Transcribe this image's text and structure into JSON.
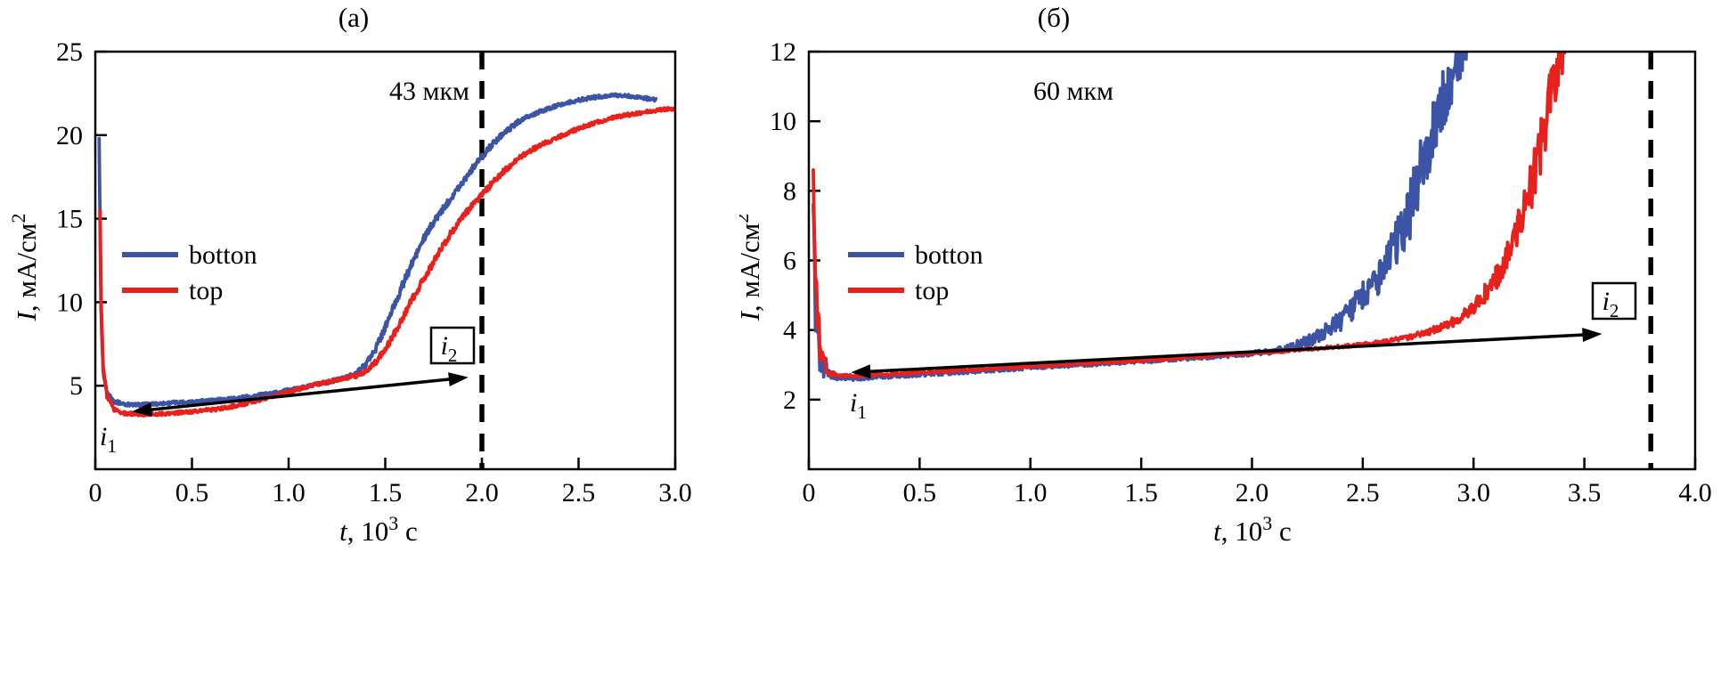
{
  "figure": {
    "background": "#ffffff"
  },
  "chart_data": [
    {
      "panel": "a",
      "type": "line",
      "title": "(а)",
      "xlabel": "t, 10^3 с",
      "xlabel_segments": [
        {
          "t": "t",
          "italic": true
        },
        {
          "t": ", 10"
        },
        {
          "t": "3",
          "sup": true
        },
        {
          "t": " с"
        }
      ],
      "ylabel": "I, мА/см^2",
      "ylabel_segments": [
        {
          "t": "I",
          "italic": true
        },
        {
          "t": ", мА/см"
        },
        {
          "t": "2",
          "sup": true
        }
      ],
      "xlim": [
        0,
        3.0
      ],
      "ylim": [
        0,
        25
      ],
      "xticks": {
        "values": [
          0,
          0.5,
          1.0,
          1.5,
          2.0,
          2.5,
          3.0
        ],
        "labels": [
          "0",
          "0.5",
          "1.0",
          "1.5",
          "2.0",
          "2.5",
          "3.0"
        ]
      },
      "yticks": {
        "values": [
          5,
          10,
          15,
          20,
          25
        ],
        "labels": [
          "5",
          "10",
          "15",
          "20",
          "25"
        ]
      },
      "grid": false,
      "frame": "box",
      "legend_position": "left-middle",
      "annotation": "43 мкм",
      "dashed_line_x": 2.0,
      "arrow": {
        "x1": 0.19,
        "y1": 3.45,
        "x2": 1.93,
        "y2": 5.5,
        "start_label": {
          "base": "i",
          "sub": "1"
        },
        "end_label": {
          "base": "i",
          "sub": "2"
        },
        "end_label_boxed": true
      },
      "series": [
        {
          "name": "botton",
          "color": "#3b54a5",
          "noise_base": 0.09,
          "noise_slope": 0.006,
          "points": [
            [
              0.02,
              19.8
            ],
            [
              0.025,
              14.0
            ],
            [
              0.03,
              9.0
            ],
            [
              0.04,
              5.8
            ],
            [
              0.06,
              4.6
            ],
            [
              0.1,
              4.05
            ],
            [
              0.15,
              3.9
            ],
            [
              0.2,
              3.85
            ],
            [
              0.3,
              3.9
            ],
            [
              0.4,
              3.98
            ],
            [
              0.5,
              4.05
            ],
            [
              0.6,
              4.12
            ],
            [
              0.7,
              4.22
            ],
            [
              0.8,
              4.35
            ],
            [
              0.9,
              4.52
            ],
            [
              1.0,
              4.72
            ],
            [
              1.1,
              4.95
            ],
            [
              1.2,
              5.2
            ],
            [
              1.3,
              5.5
            ],
            [
              1.35,
              5.75
            ],
            [
              1.4,
              6.3
            ],
            [
              1.45,
              7.2
            ],
            [
              1.5,
              8.5
            ],
            [
              1.55,
              9.9
            ],
            [
              1.6,
              11.3
            ],
            [
              1.65,
              12.6
            ],
            [
              1.7,
              13.8
            ],
            [
              1.75,
              14.8
            ],
            [
              1.8,
              15.6
            ],
            [
              1.85,
              16.4
            ],
            [
              1.9,
              17.2
            ],
            [
              1.95,
              18.0
            ],
            [
              2.0,
              18.7
            ],
            [
              2.05,
              19.4
            ],
            [
              2.1,
              20.0
            ],
            [
              2.2,
              20.9
            ],
            [
              2.3,
              21.4
            ],
            [
              2.4,
              21.8
            ],
            [
              2.5,
              22.1
            ],
            [
              2.6,
              22.3
            ],
            [
              2.7,
              22.4
            ],
            [
              2.8,
              22.3
            ],
            [
              2.9,
              22.1
            ]
          ]
        },
        {
          "name": "top",
          "color": "#e8211d",
          "noise_base": 0.09,
          "noise_slope": 0.006,
          "points": [
            [
              0.025,
              15.5
            ],
            [
              0.03,
              10.0
            ],
            [
              0.04,
              6.2
            ],
            [
              0.06,
              4.4
            ],
            [
              0.1,
              3.55
            ],
            [
              0.15,
              3.35
            ],
            [
              0.25,
              3.28
            ],
            [
              0.35,
              3.32
            ],
            [
              0.45,
              3.4
            ],
            [
              0.55,
              3.5
            ],
            [
              0.65,
              3.62
            ],
            [
              0.75,
              3.85
            ],
            [
              0.85,
              4.15
            ],
            [
              0.95,
              4.45
            ],
            [
              1.05,
              4.8
            ],
            [
              1.15,
              5.1
            ],
            [
              1.25,
              5.35
            ],
            [
              1.35,
              5.6
            ],
            [
              1.4,
              5.85
            ],
            [
              1.45,
              6.4
            ],
            [
              1.5,
              7.2
            ],
            [
              1.55,
              8.2
            ],
            [
              1.6,
              9.3
            ],
            [
              1.65,
              10.4
            ],
            [
              1.7,
              11.4
            ],
            [
              1.75,
              12.4
            ],
            [
              1.8,
              13.4
            ],
            [
              1.85,
              14.3
            ],
            [
              1.9,
              15.1
            ],
            [
              1.95,
              15.8
            ],
            [
              2.0,
              16.4
            ],
            [
              2.05,
              17.1
            ],
            [
              2.1,
              17.7
            ],
            [
              2.2,
              18.7
            ],
            [
              2.3,
              19.4
            ],
            [
              2.4,
              19.9
            ],
            [
              2.5,
              20.4
            ],
            [
              2.6,
              20.8
            ],
            [
              2.7,
              21.1
            ],
            [
              2.8,
              21.3
            ],
            [
              2.9,
              21.5
            ],
            [
              3.0,
              21.6
            ]
          ]
        }
      ]
    },
    {
      "panel": "b",
      "type": "line",
      "title": "(б)",
      "xlabel": "t, 10^3 с",
      "xlabel_segments": [
        {
          "t": "t",
          "italic": true
        },
        {
          "t": ", 10"
        },
        {
          "t": "3",
          "sup": true
        },
        {
          "t": " с"
        }
      ],
      "ylabel": "I, мА/см^2",
      "ylabel_segments": [
        {
          "t": "I",
          "italic": true
        },
        {
          "t": ", мА/см"
        },
        {
          "t": "2",
          "sup": true
        }
      ],
      "xlim": [
        0,
        4.0
      ],
      "ylim": [
        0,
        12
      ],
      "xticks": {
        "values": [
          0,
          0.5,
          1.0,
          1.5,
          2.0,
          2.5,
          3.0,
          3.5,
          4.0
        ],
        "labels": [
          "0",
          "0.5",
          "1.0",
          "1.5",
          "2.0",
          "2.5",
          "3.0",
          "3.5",
          "4.0"
        ]
      },
      "yticks": {
        "values": [
          2,
          4,
          6,
          8,
          10,
          12
        ],
        "labels": [
          "2",
          "4",
          "6",
          "8",
          "10",
          "12"
        ]
      },
      "grid": false,
      "frame": "box",
      "legend_position": "left-middle",
      "annotation": "60 мкм",
      "dashed_line_x": 3.8,
      "arrow": {
        "x1": 0.19,
        "y1": 2.78,
        "x2": 3.58,
        "y2": 3.89,
        "start_label": {
          "base": "i",
          "sub": "1"
        },
        "end_label": {
          "base": "i",
          "sub": "2"
        },
        "end_label_boxed": true
      },
      "series": [
        {
          "name": "botton",
          "color": "#3b54a5",
          "noise_base": 0.035,
          "noise_slope": 0.048,
          "points": [
            [
              0.02,
              7.6
            ],
            [
              0.03,
              5.0
            ],
            [
              0.05,
              3.2
            ],
            [
              0.08,
              2.75
            ],
            [
              0.12,
              2.62
            ],
            [
              0.2,
              2.6
            ],
            [
              0.35,
              2.66
            ],
            [
              0.5,
              2.72
            ],
            [
              0.7,
              2.8
            ],
            [
              0.9,
              2.88
            ],
            [
              1.1,
              2.96
            ],
            [
              1.3,
              3.03
            ],
            [
              1.5,
              3.1
            ],
            [
              1.7,
              3.18
            ],
            [
              1.9,
              3.27
            ],
            [
              2.0,
              3.32
            ],
            [
              2.1,
              3.4
            ],
            [
              2.15,
              3.46
            ],
            [
              2.2,
              3.55
            ],
            [
              2.25,
              3.68
            ],
            [
              2.3,
              3.85
            ],
            [
              2.35,
              4.05
            ],
            [
              2.4,
              4.3
            ],
            [
              2.45,
              4.6
            ],
            [
              2.5,
              4.95
            ],
            [
              2.55,
              5.35
            ],
            [
              2.6,
              5.85
            ],
            [
              2.65,
              6.5
            ],
            [
              2.7,
              7.3
            ],
            [
              2.75,
              8.3
            ],
            [
              2.8,
              9.4
            ],
            [
              2.85,
              10.4
            ],
            [
              2.9,
              11.3
            ],
            [
              2.95,
              12.1
            ],
            [
              3.0,
              12.8
            ],
            [
              3.05,
              13.3
            ]
          ]
        },
        {
          "name": "top",
          "color": "#e8211d",
          "noise_base": 0.03,
          "noise_slope": 0.028,
          "points": [
            [
              0.02,
              8.6
            ],
            [
              0.03,
              5.5
            ],
            [
              0.05,
              3.4
            ],
            [
              0.08,
              2.85
            ],
            [
              0.12,
              2.7
            ],
            [
              0.2,
              2.68
            ],
            [
              0.35,
              2.73
            ],
            [
              0.5,
              2.78
            ],
            [
              0.7,
              2.85
            ],
            [
              0.9,
              2.92
            ],
            [
              1.1,
              2.99
            ],
            [
              1.3,
              3.06
            ],
            [
              1.5,
              3.13
            ],
            [
              1.7,
              3.21
            ],
            [
              1.9,
              3.3
            ],
            [
              2.1,
              3.38
            ],
            [
              2.3,
              3.47
            ],
            [
              2.5,
              3.58
            ],
            [
              2.6,
              3.66
            ],
            [
              2.7,
              3.78
            ],
            [
              2.8,
              3.95
            ],
            [
              2.9,
              4.2
            ],
            [
              2.95,
              4.4
            ],
            [
              3.0,
              4.65
            ],
            [
              3.05,
              5.0
            ],
            [
              3.1,
              5.5
            ],
            [
              3.15,
              6.1
            ],
            [
              3.2,
              6.9
            ],
            [
              3.25,
              7.9
            ],
            [
              3.3,
              9.2
            ],
            [
              3.35,
              10.7
            ],
            [
              3.4,
              12.2
            ],
            [
              3.43,
              13.0
            ]
          ]
        }
      ]
    }
  ]
}
